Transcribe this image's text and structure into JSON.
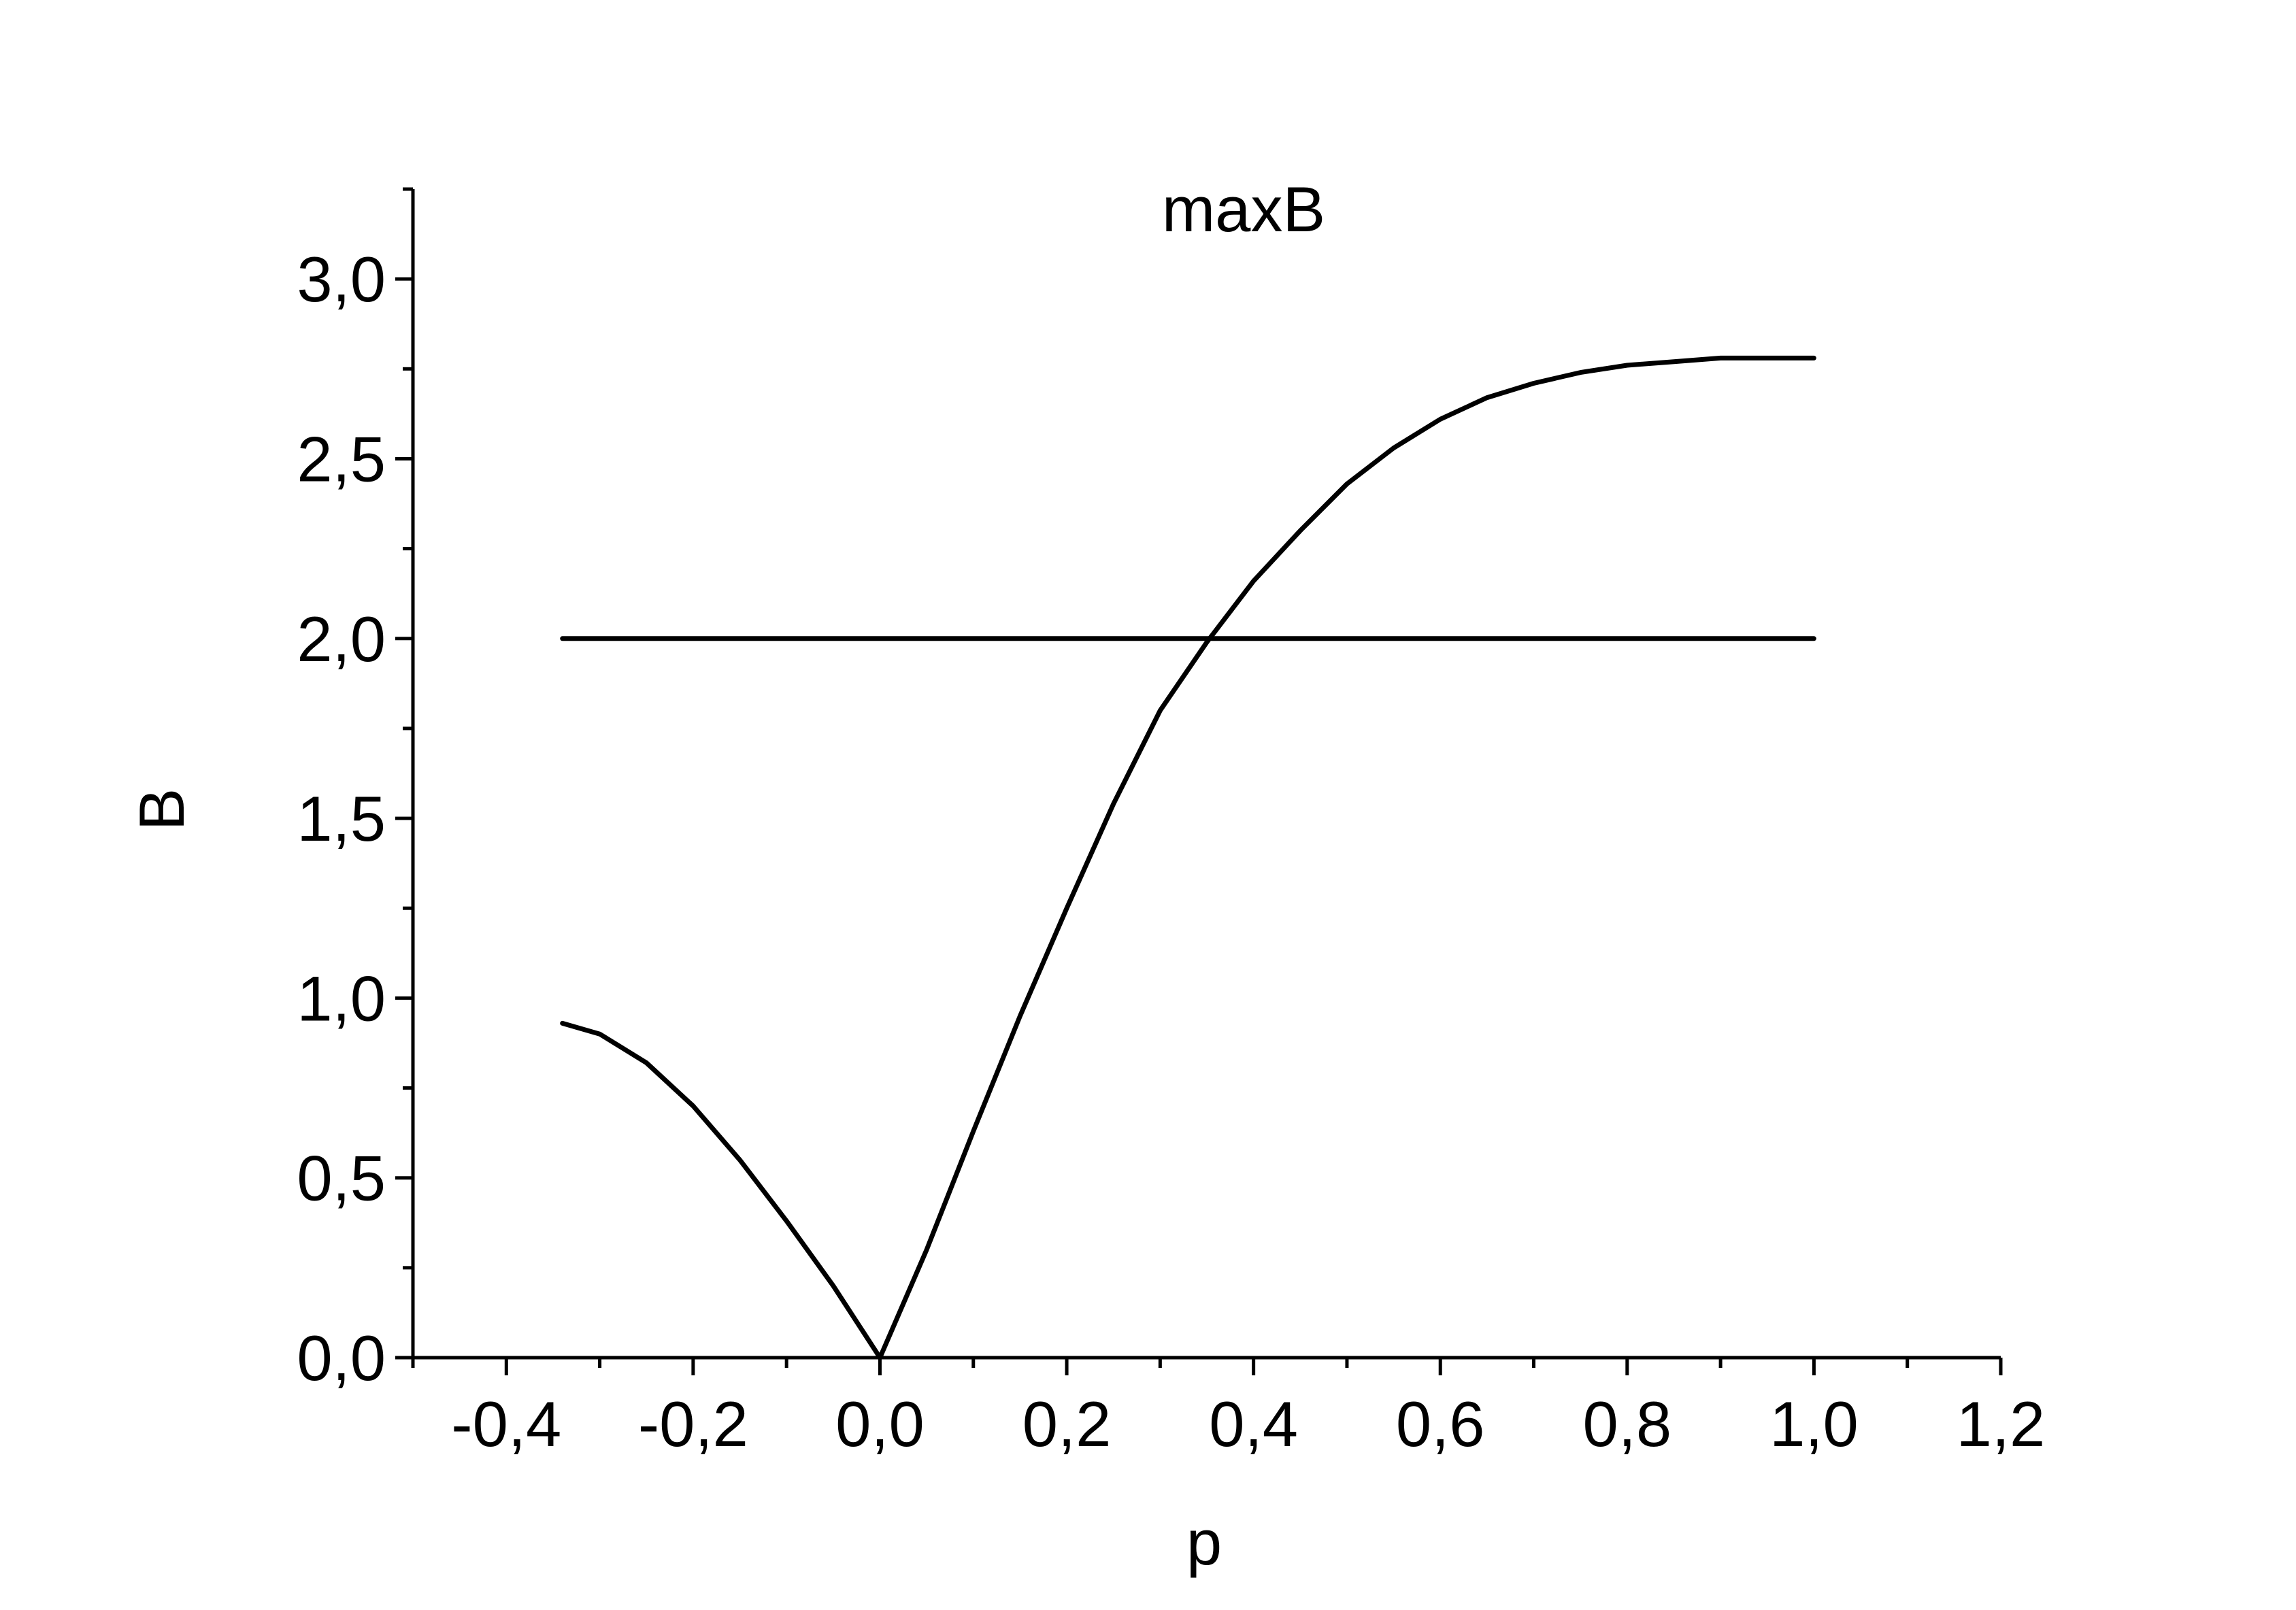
{
  "chart_data": {
    "type": "line",
    "title": "",
    "annotation": "maxB",
    "xlabel": "p",
    "ylabel": "B",
    "xlim": [
      -0.5,
      1.2
    ],
    "ylim": [
      0.0,
      3.25
    ],
    "grid": false,
    "x_ticks": [
      "-0,4",
      "-0,2",
      "0,0",
      "0,2",
      "0,4",
      "0,6",
      "0,8",
      "1,0",
      "1,2"
    ],
    "x_tick_values": [
      -0.4,
      -0.2,
      0.0,
      0.2,
      0.4,
      0.6,
      0.8,
      1.0,
      1.2
    ],
    "y_ticks": [
      "0,0",
      "0,5",
      "1,0",
      "1,5",
      "2,0",
      "2,5",
      "3,0"
    ],
    "y_tick_values": [
      0.0,
      0.5,
      1.0,
      1.5,
      2.0,
      2.5,
      3.0
    ],
    "series": [
      {
        "x": [
          -0.34,
          -0.3,
          -0.25,
          -0.2,
          -0.15,
          -0.1,
          -0.05,
          0.0,
          0.05,
          0.1,
          0.15,
          0.2,
          0.25,
          0.3,
          0.35,
          0.4,
          0.45,
          0.5,
          0.55,
          0.6,
          0.65,
          0.7,
          0.75,
          0.8,
          0.85,
          0.9,
          0.95,
          1.0
        ],
        "y": [
          0.93,
          0.9,
          0.82,
          0.7,
          0.55,
          0.38,
          0.2,
          0.0,
          0.3,
          0.63,
          0.95,
          1.25,
          1.54,
          1.8,
          1.99,
          2.16,
          2.3,
          2.43,
          2.53,
          2.61,
          2.67,
          2.71,
          2.74,
          2.76,
          2.77,
          2.78,
          2.78,
          2.78
        ]
      },
      {
        "x": [
          -0.34,
          1.0
        ],
        "y": [
          2.0,
          2.0
        ]
      }
    ]
  }
}
